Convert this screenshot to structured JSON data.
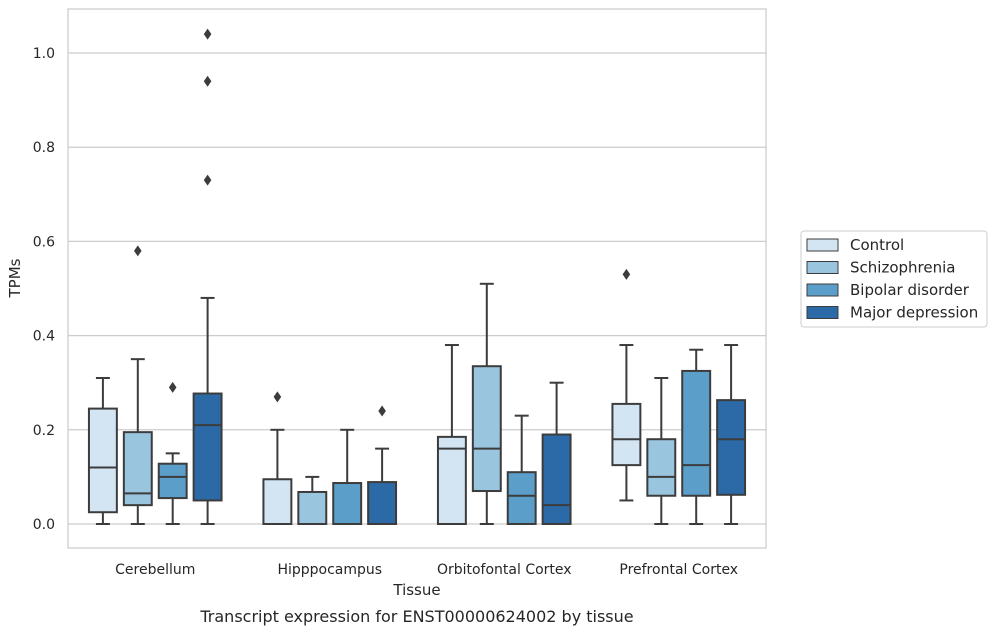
{
  "caption": "Transcript expression for ENST00000624002 by tissue",
  "chart_data": {
    "type": "box",
    "xlabel": "Tissue",
    "ylabel": "TPMs",
    "ylim": [
      -0.05,
      1.09
    ],
    "yticks": [
      0.0,
      0.2,
      0.4,
      0.6,
      0.8,
      1.0
    ],
    "ytick_labels": [
      "0.0",
      "0.2",
      "0.4",
      "0.6",
      "0.8",
      "1.0"
    ],
    "grid": "horizontal",
    "legend_position": "right",
    "categories": [
      "Cerebellum",
      "Hipppocampus",
      "Orbitofontal Cortex",
      "Prefrontal Cortex"
    ],
    "series": [
      {
        "name": "Control",
        "color": "#d3e4f3",
        "boxes": [
          {
            "whislo": 0.0,
            "q1": 0.025,
            "med": 0.12,
            "q3": 0.245,
            "whishi": 0.31,
            "fliers": []
          },
          {
            "whislo": 0.0,
            "q1": 0.0,
            "med": 0.0,
            "q3": 0.095,
            "whishi": 0.2,
            "fliers": [
              0.27
            ]
          },
          {
            "whislo": 0.0,
            "q1": 0.0,
            "med": 0.16,
            "q3": 0.185,
            "whishi": 0.38,
            "fliers": []
          },
          {
            "whislo": 0.05,
            "q1": 0.125,
            "med": 0.18,
            "q3": 0.255,
            "whishi": 0.38,
            "fliers": [
              0.53
            ]
          }
        ]
      },
      {
        "name": "Schizophrenia",
        "color": "#9ac5df",
        "boxes": [
          {
            "whislo": 0.0,
            "q1": 0.04,
            "med": 0.065,
            "q3": 0.195,
            "whishi": 0.35,
            "fliers": [
              0.58
            ]
          },
          {
            "whislo": 0.0,
            "q1": 0.0,
            "med": 0.0,
            "q3": 0.068,
            "whishi": 0.1,
            "fliers": []
          },
          {
            "whislo": 0.0,
            "q1": 0.07,
            "med": 0.16,
            "q3": 0.335,
            "whishi": 0.51,
            "fliers": []
          },
          {
            "whislo": 0.0,
            "q1": 0.06,
            "med": 0.1,
            "q3": 0.18,
            "whishi": 0.31,
            "fliers": []
          }
        ]
      },
      {
        "name": "Bipolar disorder",
        "color": "#5b9ec9",
        "boxes": [
          {
            "whislo": 0.0,
            "q1": 0.055,
            "med": 0.1,
            "q3": 0.128,
            "whishi": 0.15,
            "fliers": [
              0.29
            ]
          },
          {
            "whislo": 0.0,
            "q1": 0.0,
            "med": 0.0,
            "q3": 0.087,
            "whishi": 0.2,
            "fliers": []
          },
          {
            "whislo": 0.0,
            "q1": 0.0,
            "med": 0.06,
            "q3": 0.11,
            "whishi": 0.23,
            "fliers": []
          },
          {
            "whislo": 0.0,
            "q1": 0.06,
            "med": 0.125,
            "q3": 0.325,
            "whishi": 0.37,
            "fliers": []
          }
        ]
      },
      {
        "name": "Major depression",
        "color": "#2b6aa6",
        "boxes": [
          {
            "whislo": 0.0,
            "q1": 0.05,
            "med": 0.21,
            "q3": 0.277,
            "whishi": 0.48,
            "fliers": [
              0.73,
              1.04,
              0.94
            ]
          },
          {
            "whislo": 0.0,
            "q1": 0.0,
            "med": 0.0,
            "q3": 0.089,
            "whishi": 0.16,
            "fliers": [
              0.24
            ]
          },
          {
            "whislo": 0.0,
            "q1": 0.0,
            "med": 0.04,
            "q3": 0.19,
            "whishi": 0.3,
            "fliers": []
          },
          {
            "whislo": 0.0,
            "q1": 0.062,
            "med": 0.18,
            "q3": 0.263,
            "whishi": 0.38,
            "fliers": []
          }
        ]
      }
    ]
  }
}
